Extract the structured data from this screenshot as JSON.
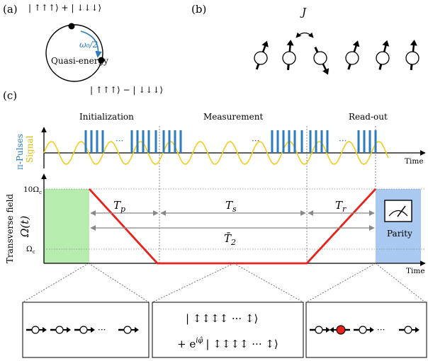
{
  "panel_a": {
    "label": "(a)",
    "top_state": "| ↑↑↑⟩ + | ↓↓↓⟩",
    "bottom_state": "| ↑↑↑⟩ − | ↓↓↓⟩",
    "frequency": "ω₀/2",
    "center_label": "Quasi-energy",
    "colors": {
      "arrow": "#2b7bbd"
    }
  },
  "panel_b": {
    "label": "(b)",
    "coupling": "J"
  },
  "panel_c": {
    "label": "(c)",
    "phases": [
      "Initialization",
      "Measurement",
      "Read-out"
    ],
    "ylabel_top_pulses": "π-Pulses",
    "ylabel_top_signal": "Signal",
    "time_label": "Time",
    "ylabel_bottom": "Transverse field",
    "omega_label": "Ω(t)",
    "y_tick_top": "10Ω",
    "y_tick_top_sub": "c",
    "y_tick_bottom": "Ω",
    "y_tick_bottom_sub": "c",
    "ellipsis": "···",
    "intervals": {
      "tp": "T",
      "tp_sub": "p",
      "ts": "T",
      "ts_sub": "s",
      "tr": "T",
      "tr_sub": "r",
      "t2": "T̄",
      "t2_sub": "2"
    },
    "parity_label": "Parity",
    "colors": {
      "pulses": "#2b7bbd",
      "signal": "#f2cd1f",
      "field": "#e8211d",
      "init_block": "#b6ecad",
      "readout_block": "#a9c9f0"
    },
    "chart_data": {
      "type": "line",
      "title": "",
      "xlabel": "Time",
      "ylabel": "Transverse field",
      "series": [
        {
          "name": "Ω(t)",
          "points": [
            [
              "start of T_p",
              "10Ω_c"
            ],
            [
              "end of T_p",
              "below Ω_c"
            ],
            [
              "end of T_s",
              "below Ω_c"
            ],
            [
              "end of T_r",
              "10Ω_c"
            ]
          ]
        }
      ]
    },
    "boxes": {
      "middle_line1": "| ↕↕↕↕ ··· ↕⟩",
      "middle_prefix": "+ e",
      "middle_exp": "iφ̂",
      "middle_line2": "| ↕↕↕↕ ··· ↕⟩",
      "ellipsis": "···"
    }
  }
}
